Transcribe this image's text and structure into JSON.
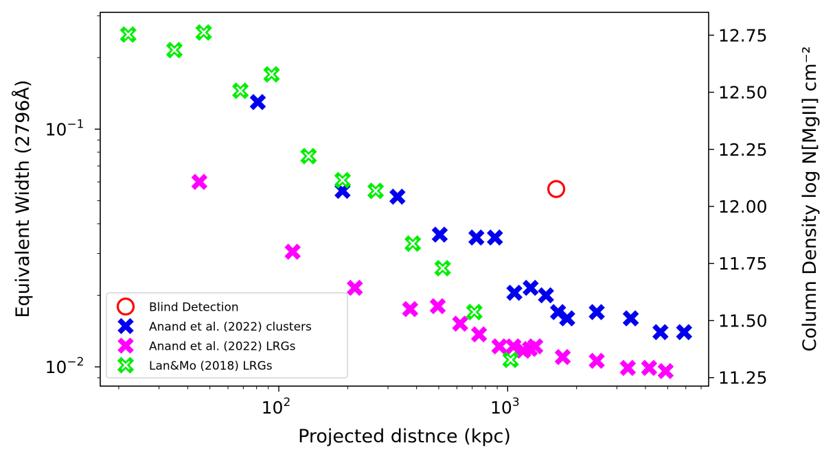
{
  "chart_data": {
    "type": "scatter",
    "xlabel": "Projected distnce (kpc)",
    "ylabel": "Equivalent Width (2796Å)",
    "ylabel_right": "Column Density log N[MgII] cm⁻²",
    "xscale": "log",
    "yscale": "log",
    "xlim": [
      16.6,
      7550
    ],
    "ylim": [
      0.0083,
      0.31
    ],
    "ylim_right": [
      11.213,
      12.85
    ],
    "x_ticks": [
      {
        "value": 100,
        "base": "10",
        "exp": "2"
      },
      {
        "value": 1000,
        "base": "10",
        "exp": "3"
      }
    ],
    "y_ticks": [
      {
        "value": 0.1,
        "base": "10",
        "exp": "−1"
      },
      {
        "value": 0.01,
        "base": "10",
        "exp": "−2"
      }
    ],
    "y_right_ticks": [
      "11.25",
      "11.50",
      "11.75",
      "12.00",
      "12.25",
      "12.50",
      "12.75"
    ],
    "legend_position": "lower-left",
    "series": [
      {
        "name": "Blind Detection",
        "marker": "open-circle",
        "color": "#ff0000",
        "points": [
          [
            1630,
            0.056
          ]
        ]
      },
      {
        "name": "Anand et al. (2022) clusters",
        "marker": "filled-x",
        "color": "#0000ee",
        "points": [
          [
            81,
            0.13
          ],
          [
            190,
            0.055
          ],
          [
            330,
            0.052
          ],
          [
            505,
            0.036
          ],
          [
            730,
            0.035
          ],
          [
            880,
            0.035
          ],
          [
            1070,
            0.0205
          ],
          [
            1260,
            0.0215
          ],
          [
            1470,
            0.02
          ],
          [
            1660,
            0.017
          ],
          [
            1820,
            0.016
          ],
          [
            2450,
            0.017
          ],
          [
            3450,
            0.016
          ],
          [
            4650,
            0.014
          ],
          [
            5900,
            0.014
          ]
        ]
      },
      {
        "name": "Anand et al. (2022) LRGs",
        "marker": "filled-x",
        "color": "#ff00ff",
        "points": [
          [
            45,
            0.06
          ],
          [
            115,
            0.0305
          ],
          [
            215,
            0.0215
          ],
          [
            375,
            0.0175
          ],
          [
            495,
            0.018
          ],
          [
            620,
            0.0152
          ],
          [
            750,
            0.0137
          ],
          [
            920,
            0.0122
          ],
          [
            1060,
            0.0122
          ],
          [
            1170,
            0.0117
          ],
          [
            1250,
            0.0119
          ],
          [
            1320,
            0.0122
          ],
          [
            1740,
            0.011
          ],
          [
            2450,
            0.0106
          ],
          [
            3350,
            0.0099
          ],
          [
            4150,
            0.0099
          ],
          [
            4900,
            0.0096
          ]
        ]
      },
      {
        "name": "Lan&Mo (2018) LRGs",
        "marker": "open-x",
        "color": "#00ee00",
        "points": [
          [
            22,
            0.25
          ],
          [
            35,
            0.215
          ],
          [
            47,
            0.255
          ],
          [
            68,
            0.145
          ],
          [
            93,
            0.17
          ],
          [
            135,
            0.077
          ],
          [
            190,
            0.061
          ],
          [
            265,
            0.055
          ],
          [
            385,
            0.033
          ],
          [
            520,
            0.026
          ],
          [
            715,
            0.017
          ],
          [
            1030,
            0.0107
          ]
        ]
      }
    ]
  }
}
